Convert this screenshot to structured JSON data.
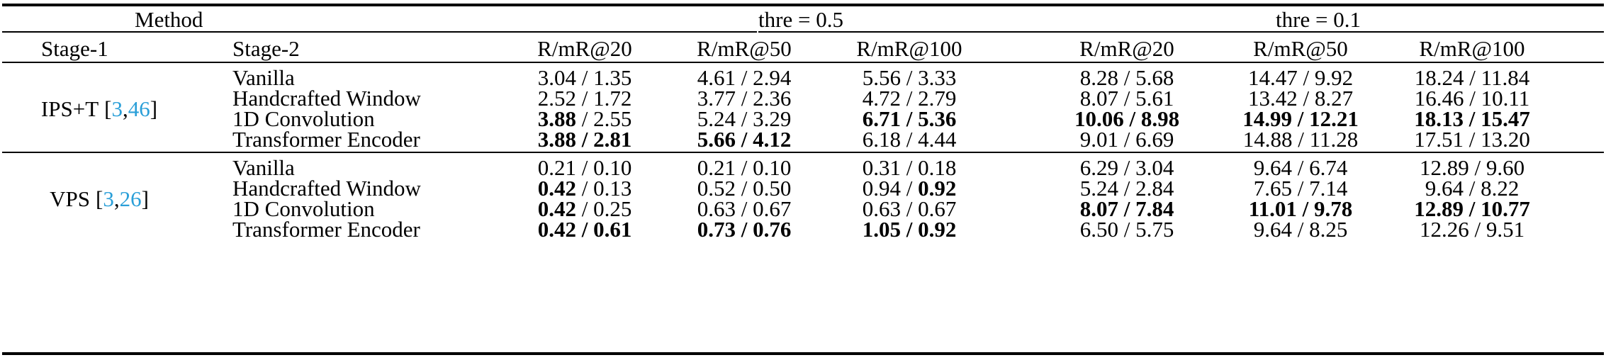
{
  "header": {
    "method": "Method",
    "thre_a": "thre = 0.5",
    "thre_b": "thre = 0.1",
    "stage1": "Stage-1",
    "stage2": "Stage-2",
    "cols": [
      "R/mR@20",
      "R/mR@50",
      "R/mR@100",
      "R/mR@20",
      "R/mR@50",
      "R/mR@100"
    ]
  },
  "groups": [
    {
      "stage1": "IPS+T",
      "cite_open": "[",
      "cite_a": "3",
      "cite_sep": ",",
      "cite_b": "46",
      "cite_close": "]",
      "rows": [
        {
          "stage2": "Vanilla",
          "cells": [
            {
              "r": "3.04",
              "rb": false,
              "m": "1.35",
              "mb": false
            },
            {
              "r": "4.61",
              "rb": false,
              "m": "2.94",
              "mb": false
            },
            {
              "r": "5.56",
              "rb": false,
              "m": "3.33",
              "mb": false
            },
            {
              "r": "8.28",
              "rb": false,
              "m": "5.68",
              "mb": false
            },
            {
              "r": "14.47",
              "rb": false,
              "m": "9.92",
              "mb": false
            },
            {
              "r": "18.24",
              "rb": false,
              "m": "11.84",
              "mb": false
            }
          ]
        },
        {
          "stage2": "Handcrafted Window",
          "cells": [
            {
              "r": "2.52",
              "rb": false,
              "m": "1.72",
              "mb": false
            },
            {
              "r": "3.77",
              "rb": false,
              "m": "2.36",
              "mb": false
            },
            {
              "r": "4.72",
              "rb": false,
              "m": "2.79",
              "mb": false
            },
            {
              "r": "8.07",
              "rb": false,
              "m": "5.61",
              "mb": false
            },
            {
              "r": "13.42",
              "rb": false,
              "m": "8.27",
              "mb": false
            },
            {
              "r": "16.46",
              "rb": false,
              "m": "10.11",
              "mb": false
            }
          ]
        },
        {
          "stage2": "1D Convolution",
          "cells": [
            {
              "r": "3.88",
              "rb": true,
              "m": "2.55",
              "mb": false
            },
            {
              "r": "5.24",
              "rb": false,
              "m": "3.29",
              "mb": false
            },
            {
              "r": "6.71",
              "rb": true,
              "m": "5.36",
              "mb": true
            },
            {
              "r": "10.06",
              "rb": true,
              "m": "8.98",
              "mb": true
            },
            {
              "r": "14.99",
              "rb": true,
              "m": "12.21",
              "mb": true
            },
            {
              "r": "18.13",
              "rb": true,
              "m": "15.47",
              "mb": true
            }
          ]
        },
        {
          "stage2": "Transformer Encoder",
          "cells": [
            {
              "r": "3.88",
              "rb": true,
              "m": "2.81",
              "mb": true
            },
            {
              "r": "5.66",
              "rb": true,
              "m": "4.12",
              "mb": true
            },
            {
              "r": "6.18",
              "rb": false,
              "m": "4.44",
              "mb": false
            },
            {
              "r": "9.01",
              "rb": false,
              "m": "6.69",
              "mb": false
            },
            {
              "r": "14.88",
              "rb": false,
              "m": "11.28",
              "mb": false
            },
            {
              "r": "17.51",
              "rb": false,
              "m": "13.20",
              "mb": false
            }
          ]
        }
      ]
    },
    {
      "stage1": "VPS",
      "cite_open": "[",
      "cite_a": "3",
      "cite_sep": ",",
      "cite_b": "26",
      "cite_close": "]",
      "rows": [
        {
          "stage2": "Vanilla",
          "cells": [
            {
              "r": "0.21",
              "rb": false,
              "m": "0.10",
              "mb": false
            },
            {
              "r": "0.21",
              "rb": false,
              "m": "0.10",
              "mb": false
            },
            {
              "r": "0.31",
              "rb": false,
              "m": "0.18",
              "mb": false
            },
            {
              "r": "6.29",
              "rb": false,
              "m": "3.04",
              "mb": false
            },
            {
              "r": "9.64",
              "rb": false,
              "m": "6.74",
              "mb": false
            },
            {
              "r": "12.89",
              "rb": false,
              "m": "9.60",
              "mb": false
            }
          ]
        },
        {
          "stage2": "Handcrafted Window",
          "cells": [
            {
              "r": "0.42",
              "rb": true,
              "m": "0.13",
              "mb": false
            },
            {
              "r": "0.52",
              "rb": false,
              "m": "0.50",
              "mb": false
            },
            {
              "r": "0.94",
              "rb": false,
              "m": "0.92",
              "mb": true
            },
            {
              "r": "5.24",
              "rb": false,
              "m": "2.84",
              "mb": false
            },
            {
              "r": "7.65",
              "rb": false,
              "m": "7.14",
              "mb": false
            },
            {
              "r": "9.64",
              "rb": false,
              "m": "8.22",
              "mb": false
            }
          ]
        },
        {
          "stage2": "1D Convolution",
          "cells": [
            {
              "r": "0.42",
              "rb": true,
              "m": "0.25",
              "mb": false
            },
            {
              "r": "0.63",
              "rb": false,
              "m": "0.67",
              "mb": false
            },
            {
              "r": "0.63",
              "rb": false,
              "m": "0.67",
              "mb": false
            },
            {
              "r": "8.07",
              "rb": true,
              "m": "7.84",
              "mb": true
            },
            {
              "r": "11.01",
              "rb": true,
              "m": "9.78",
              "mb": true
            },
            {
              "r": "12.89",
              "rb": true,
              "m": "10.77",
              "mb": true
            }
          ]
        },
        {
          "stage2": "Transformer Encoder",
          "cells": [
            {
              "r": "0.42",
              "rb": true,
              "m": "0.61",
              "mb": true
            },
            {
              "r": "0.73",
              "rb": true,
              "m": "0.76",
              "mb": true
            },
            {
              "r": "1.05",
              "rb": true,
              "m": "0.92",
              "mb": true
            },
            {
              "r": "6.50",
              "rb": false,
              "m": "5.75",
              "mb": false
            },
            {
              "r": "9.64",
              "rb": false,
              "m": "8.25",
              "mb": false
            },
            {
              "r": "12.26",
              "rb": false,
              "m": "9.51",
              "mb": false
            }
          ]
        }
      ]
    }
  ]
}
